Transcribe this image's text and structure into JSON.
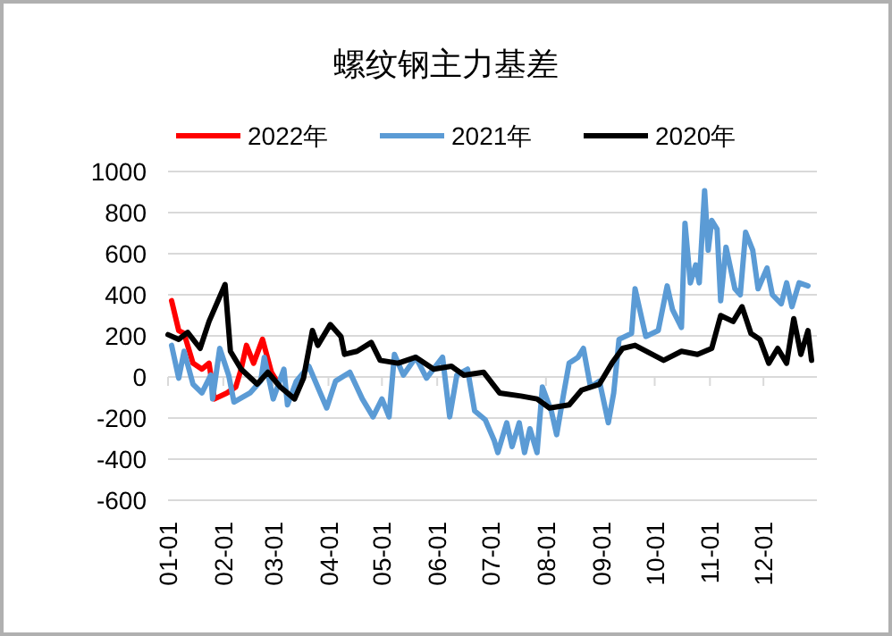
{
  "chart_data": {
    "type": "line",
    "title": "螺纹钢主力基差",
    "legend": "top",
    "grid": "y",
    "line_style": "solid",
    "marker": "none",
    "xlim": [
      "--01-01",
      "--12-31"
    ],
    "xticks": [
      {
        "value": "--01-01",
        "label": "01-01"
      },
      {
        "value": "--02-01",
        "label": "02-01"
      },
      {
        "value": "--03-01",
        "label": "03-01"
      },
      {
        "value": "--04-01",
        "label": "04-01"
      },
      {
        "value": "--05-01",
        "label": "05-01"
      },
      {
        "value": "--06-01",
        "label": "06-01"
      },
      {
        "value": "--07-01",
        "label": "07-01"
      },
      {
        "value": "--08-01",
        "label": "08-01"
      },
      {
        "value": "--09-01",
        "label": "09-01"
      },
      {
        "value": "--10-01",
        "label": "10-01"
      },
      {
        "value": "--11-01",
        "label": "11-01"
      },
      {
        "value": "--12-01",
        "label": "12-01"
      }
    ],
    "ylim": [
      -600,
      1000
    ],
    "yticks": [
      -600,
      -400,
      -200,
      0,
      200,
      400,
      600,
      800,
      1000
    ],
    "series": [
      {
        "name": "2022年",
        "color": "#ff0000",
        "x": [
          "--01-03",
          "--01-07",
          "--01-10",
          "--01-15",
          "--01-20",
          "--01-24",
          "--01-27",
          "--02-03",
          "--02-08",
          "--02-11",
          "--02-14",
          "--02-18",
          "--02-23",
          "--02-28",
          "--03-03"
        ],
        "values": [
          371,
          226,
          212,
          67,
          38,
          67,
          -107,
          -78,
          -49,
          38,
          154,
          67,
          183,
          23,
          -20
        ]
      },
      {
        "name": "2021年",
        "color": "#5b9bd5",
        "x": [
          "--01-03",
          "--01-07",
          "--01-10",
          "--01-15",
          "--01-20",
          "--01-25",
          "--01-26",
          "--01-30",
          "--02-04",
          "--02-07",
          "--02-16",
          "--02-22",
          "--02-24",
          "--03-01",
          "--03-07",
          "--03-09",
          "--03-14",
          "--03-21",
          "--03-31",
          "--04-05",
          "--04-13",
          "--04-20",
          "--04-26",
          "--05-01",
          "--05-05",
          "--05-08",
          "--05-13",
          "--05-20",
          "--05-26",
          "--06-04",
          "--06-08",
          "--06-12",
          "--06-18",
          "--06-22",
          "--06-28",
          "--07-03",
          "--07-05",
          "--07-10",
          "--07-13",
          "--07-17",
          "--07-20",
          "--07-23",
          "--07-27",
          "--07-30",
          "--08-04",
          "--08-07",
          "--08-11",
          "--08-14",
          "--08-19",
          "--08-22",
          "--08-26",
          "--08-31",
          "--09-05",
          "--09-08",
          "--09-11",
          "--09-18",
          "--09-20",
          "--09-26",
          "--10-03",
          "--10-08",
          "--10-11",
          "--10-16",
          "--10-18",
          "--10-21",
          "--10-24",
          "--10-26",
          "--10-29",
          "--10-31",
          "--11-02",
          "--11-05",
          "--11-07",
          "--11-10",
          "--11-15",
          "--11-18",
          "--11-21",
          "--11-25",
          "--11-28",
          "--12-03",
          "--12-06",
          "--12-11",
          "--12-14",
          "--12-17",
          "--12-21",
          "--12-26"
        ],
        "values": [
          154,
          -6,
          125,
          -35,
          -78,
          9,
          -107,
          139,
          9,
          -122,
          -78,
          -20,
          96,
          -107,
          38,
          -136,
          -20,
          52,
          -151,
          -20,
          23,
          -107,
          -194,
          -107,
          -194,
          110,
          9,
          96,
          -6,
          96,
          -194,
          9,
          38,
          -165,
          -209,
          -310,
          -368,
          -223,
          -339,
          -223,
          -368,
          -252,
          -368,
          -49,
          -165,
          -281,
          -78,
          67,
          96,
          139,
          -49,
          -20,
          -223,
          -78,
          183,
          212,
          429,
          197,
          226,
          443,
          328,
          241,
          748,
          458,
          545,
          458,
          907,
          617,
          762,
          719,
          371,
          632,
          429,
          400,
          704,
          617,
          429,
          530,
          400,
          356,
          458,
          342,
          458,
          443
        ]
      },
      {
        "name": "2020年",
        "color": "#000000",
        "x": [
          "--01-01",
          "--01-07",
          "--01-12",
          "--01-19",
          "--01-24",
          "--02-02",
          "--02-05",
          "--02-11",
          "--02-20",
          "--02-26",
          "--03-05",
          "--03-13",
          "--03-18",
          "--03-23",
          "--03-26",
          "--04-02",
          "--04-08",
          "--04-10",
          "--04-17",
          "--04-25",
          "--04-30",
          "--05-10",
          "--05-20",
          "--05-30",
          "--06-09",
          "--06-16",
          "--06-27",
          "--07-06",
          "--07-18",
          "--07-27",
          "--08-03",
          "--08-14",
          "--08-21",
          "--08-31",
          "--09-07",
          "--09-13",
          "--09-20",
          "--10-06",
          "--10-16",
          "--10-25",
          "--11-02",
          "--11-07",
          "--11-14",
          "--11-19",
          "--11-24",
          "--11-29",
          "--12-04",
          "--12-09",
          "--12-14",
          "--12-18",
          "--12-22",
          "--12-26",
          "--12-28"
        ],
        "values": [
          206,
          183,
          217,
          139,
          270,
          450,
          125,
          38,
          -35,
          23,
          -49,
          -107,
          -6,
          226,
          154,
          255,
          197,
          110,
          125,
          168,
          81,
          67,
          96,
          38,
          52,
          9,
          23,
          -78,
          -93,
          -107,
          -151,
          -136,
          -64,
          -35,
          67,
          139,
          154,
          81,
          125,
          110,
          139,
          299,
          270,
          342,
          212,
          183,
          67,
          139,
          67,
          284,
          110,
          226,
          81
        ]
      }
    ]
  }
}
